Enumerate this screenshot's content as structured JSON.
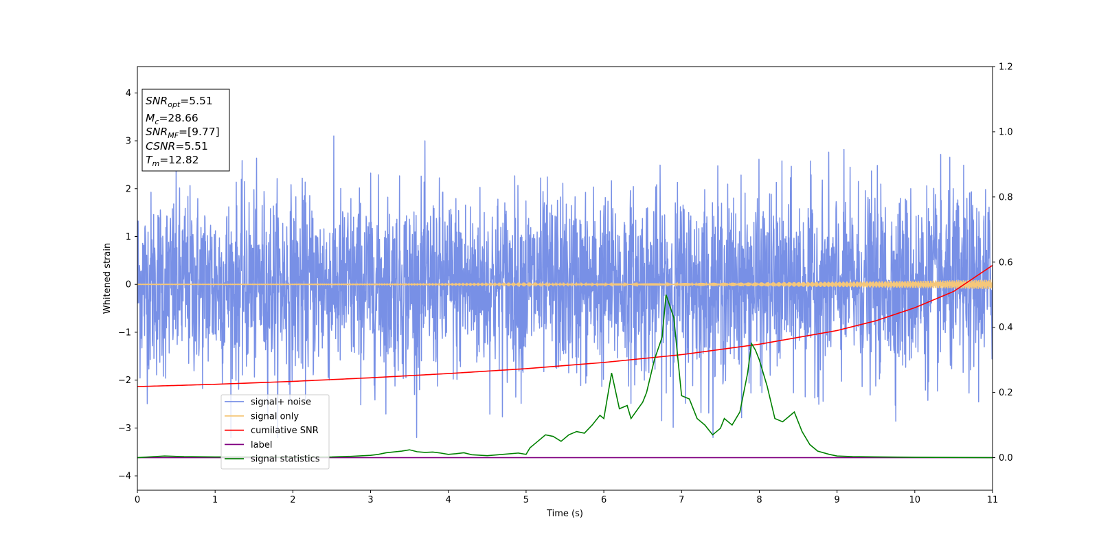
{
  "chart_data": {
    "type": "line",
    "xlabel": "Time (s)",
    "ylabel": "Whitened strain",
    "xlim": [
      0,
      11
    ],
    "ylim_left": [
      -4.3,
      4.55
    ],
    "ylim_right": [
      -0.1,
      1.2
    ],
    "x_ticks": [
      0,
      1,
      2,
      3,
      4,
      5,
      6,
      7,
      8,
      9,
      10,
      11
    ],
    "y_ticks_left": [
      -4,
      -3,
      -2,
      -1,
      0,
      1,
      2,
      3,
      4
    ],
    "y_ticks_right": [
      0.0,
      0.2,
      0.4,
      0.6,
      0.8,
      1.0,
      1.2
    ],
    "grid": false,
    "legend_position": "lower-left",
    "info_box": {
      "snr_opt": {
        "base": "SNR",
        "sub": "opt",
        "value": "=5.51"
      },
      "mc": {
        "base": "M",
        "sub": "c",
        "value": "=28.66"
      },
      "snr_mf": {
        "base": "SNR",
        "sub": "MF",
        "value": "=[9.77]"
      },
      "csnr": {
        "base": "CSNR",
        "sub": "",
        "value": "=5.51"
      },
      "tm": {
        "base": "T",
        "sub": "m",
        "value": "=12.82"
      }
    },
    "series": [
      {
        "name": "signal+ noise",
        "color": "#7890e6",
        "axis": "left",
        "kind": "noise",
        "amplitude_envelope": [
          -3.2,
          3.1
        ]
      },
      {
        "name": "signal only",
        "color": "#f5c77a",
        "axis": "left",
        "kind": "chirp",
        "x_start": 0,
        "x_end": 11,
        "amplitude_start": 0.005,
        "amplitude_end": 0.1
      },
      {
        "name": "cumilative SNR",
        "color": "#ff0000",
        "axis": "right",
        "x": [
          0,
          1,
          2,
          3,
          4,
          5,
          6,
          7,
          8,
          9,
          9.5,
          10,
          10.5,
          11
        ],
        "y": [
          0.218,
          0.225,
          0.234,
          0.245,
          0.258,
          0.273,
          0.292,
          0.316,
          0.348,
          0.39,
          0.42,
          0.46,
          0.51,
          0.59
        ]
      },
      {
        "name": "label",
        "color": "#800080",
        "axis": "right",
        "x": [
          0,
          11
        ],
        "y": [
          0.0,
          0.0
        ]
      },
      {
        "name": "signal statistics",
        "color": "#008000",
        "axis": "right",
        "x": [
          0,
          0.35,
          0.6,
          1.0,
          1.5,
          2.0,
          2.5,
          2.75,
          3.0,
          3.1,
          3.2,
          3.4,
          3.5,
          3.6,
          3.7,
          3.8,
          3.9,
          4.0,
          4.1,
          4.2,
          4.3,
          4.5,
          4.7,
          4.9,
          5.0,
          5.05,
          5.15,
          5.25,
          5.35,
          5.45,
          5.55,
          5.65,
          5.75,
          5.85,
          5.95,
          6.0,
          6.1,
          6.2,
          6.3,
          6.35,
          6.5,
          6.55,
          6.65,
          6.75,
          6.8,
          6.9,
          7.0,
          7.1,
          7.2,
          7.3,
          7.4,
          7.5,
          7.55,
          7.65,
          7.75,
          7.85,
          7.9,
          7.95,
          8.0,
          8.1,
          8.2,
          8.3,
          8.45,
          8.55,
          8.65,
          8.75,
          8.9,
          9.0,
          9.2,
          10,
          11
        ],
        "y": [
          0.0,
          0.005,
          0.003,
          0.002,
          0.002,
          0.001,
          0.002,
          0.004,
          0.007,
          0.01,
          0.015,
          0.02,
          0.024,
          0.018,
          0.016,
          0.017,
          0.014,
          0.01,
          0.012,
          0.015,
          0.009,
          0.006,
          0.01,
          0.014,
          0.01,
          0.03,
          0.05,
          0.07,
          0.065,
          0.05,
          0.07,
          0.08,
          0.075,
          0.1,
          0.13,
          0.12,
          0.26,
          0.15,
          0.16,
          0.12,
          0.17,
          0.2,
          0.3,
          0.37,
          0.5,
          0.43,
          0.19,
          0.18,
          0.12,
          0.1,
          0.07,
          0.09,
          0.12,
          0.1,
          0.14,
          0.26,
          0.35,
          0.33,
          0.3,
          0.22,
          0.12,
          0.11,
          0.14,
          0.08,
          0.04,
          0.02,
          0.01,
          0.005,
          0.003,
          0.001,
          0.0
        ]
      }
    ]
  }
}
